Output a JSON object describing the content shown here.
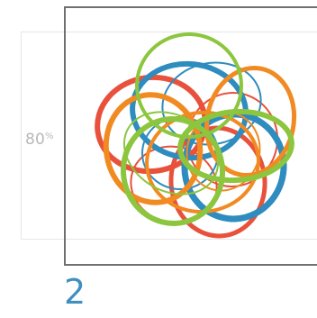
{
  "preview": {
    "zoom_value": "80",
    "zoom_unit": "%",
    "page_number": "2"
  },
  "artwork": {
    "name": "overlapping-rings",
    "colors": {
      "red": "#e8513b",
      "orange": "#f18a21",
      "blue": "#2e8cbe",
      "green": "#8cc63e"
    }
  }
}
